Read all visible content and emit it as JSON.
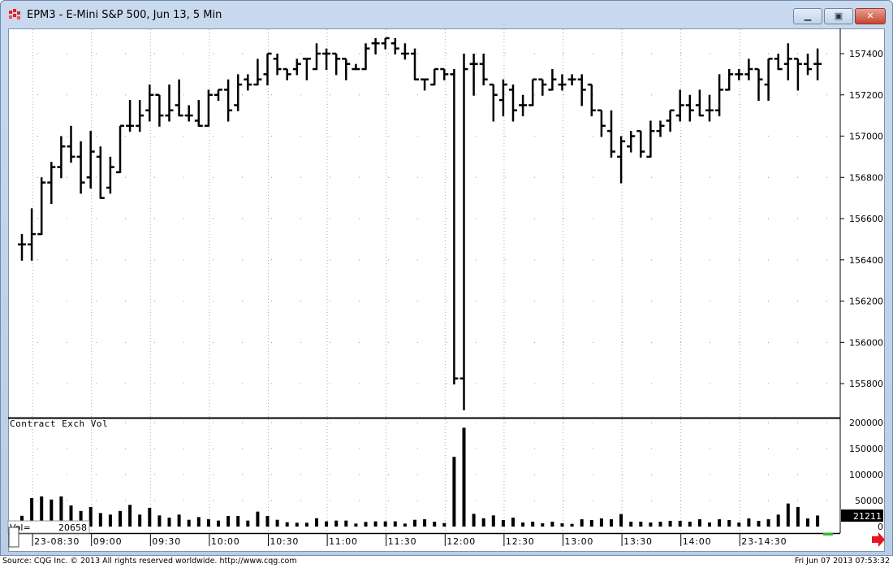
{
  "window": {
    "title": "EPM3 - E-Mini S&P 500, Jun 13, 5 Min",
    "icon": "cqg-logo-icon",
    "controls": [
      "minimize-icon",
      "maximize-icon",
      "close-icon"
    ]
  },
  "footer": {
    "source": "Source: CQG Inc. © 2013 All rights reserved worldwide. http://www.cqg.com",
    "timestamp": "Fri Jun 07 2013 07:53:32"
  },
  "colors": {
    "bars": "#000000",
    "grid": "#9a9a9a",
    "last_value_bg": "#000000",
    "arrow": "#e8141c",
    "scroll_indicator": "#22c422"
  },
  "chart_data": [
    {
      "type": "ohlc",
      "title": "EPM3 - E-Mini S&P 500, Jun 13, 5 Min",
      "ylim": [
        155650,
        157500
      ],
      "yticks": [
        155800,
        156000,
        156200,
        156400,
        156600,
        156800,
        157000,
        157200,
        157400
      ],
      "ytick_labels": [
        "155800",
        "156000",
        "156200",
        "156400",
        "156600",
        "156800",
        "157000",
        "157200",
        "157400"
      ],
      "grid": true,
      "x": [
        "08:25",
        "08:30",
        "08:35",
        "08:40",
        "08:45",
        "08:50",
        "08:55",
        "09:00",
        "09:05",
        "09:10",
        "09:15",
        "09:20",
        "09:25",
        "09:30",
        "09:35",
        "09:40",
        "09:45",
        "09:50",
        "09:55",
        "10:00",
        "10:05",
        "10:10",
        "10:15",
        "10:20",
        "10:25",
        "10:30",
        "10:35",
        "10:40",
        "10:45",
        "10:50",
        "10:55",
        "11:00",
        "11:05",
        "11:10",
        "11:15",
        "11:20",
        "11:25",
        "11:30",
        "11:35",
        "11:40",
        "11:45",
        "11:50",
        "11:55",
        "12:00",
        "12:05",
        "12:10",
        "12:15",
        "12:20",
        "12:25",
        "12:30",
        "12:35",
        "12:40",
        "12:45",
        "12:50",
        "12:55",
        "13:00",
        "13:05",
        "13:10",
        "13:15",
        "13:20",
        "13:25",
        "13:30",
        "13:35",
        "13:40",
        "13:45",
        "13:50",
        "13:55",
        "14:00",
        "14:05",
        "14:10",
        "14:15",
        "14:20",
        "14:25",
        "14:30",
        "14:35",
        "14:40",
        "14:45",
        "14:50",
        "14:55",
        "15:00",
        "15:05",
        "15:10"
      ],
      "ohlc": [
        [
          156475,
          156525,
          156400,
          156475
        ],
        [
          156475,
          156650,
          156400,
          156525
        ],
        [
          156525,
          156800,
          156525,
          156775
        ],
        [
          156775,
          156875,
          156675,
          156850
        ],
        [
          156850,
          157000,
          156800,
          156950
        ],
        [
          156950,
          157050,
          156875,
          156900
        ],
        [
          156900,
          156975,
          156725,
          156775
        ],
        [
          156800,
          157025,
          156750,
          156925
        ],
        [
          156900,
          156950,
          156700,
          156700
        ],
        [
          156750,
          156900,
          156725,
          156850
        ],
        [
          156825,
          157050,
          156825,
          157050
        ],
        [
          157050,
          157175,
          157025,
          157050
        ],
        [
          157050,
          157175,
          157025,
          157100
        ],
        [
          157125,
          157250,
          157075,
          157200
        ],
        [
          157200,
          157200,
          157050,
          157100
        ],
        [
          157100,
          157250,
          157075,
          157125
        ],
        [
          157150,
          157275,
          157100,
          157100
        ],
        [
          157100,
          157150,
          157075,
          157100
        ],
        [
          157075,
          157175,
          157050,
          157050
        ],
        [
          157050,
          157225,
          157050,
          157200
        ],
        [
          157200,
          157225,
          157175,
          157225
        ],
        [
          157225,
          157275,
          157075,
          157125
        ],
        [
          157150,
          157300,
          157125,
          157250
        ],
        [
          157275,
          157300,
          157225,
          157250
        ],
        [
          157250,
          157375,
          157250,
          157275
        ],
        [
          157300,
          157400,
          157250,
          157400
        ],
        [
          157375,
          157400,
          157300,
          157325
        ],
        [
          157325,
          157325,
          157275,
          157300
        ],
        [
          157325,
          157375,
          157300,
          157350
        ],
        [
          157375,
          157375,
          157275,
          157375
        ],
        [
          157325,
          157450,
          157325,
          157400
        ],
        [
          157400,
          157425,
          157325,
          157400
        ],
        [
          157400,
          157400,
          157300,
          157375
        ],
        [
          157375,
          157375,
          157275,
          157350
        ],
        [
          157325,
          157350,
          157325,
          157325
        ],
        [
          157325,
          157450,
          157325,
          157425
        ],
        [
          157450,
          157475,
          157400,
          157450
        ],
        [
          157450,
          157475,
          157425,
          157475
        ],
        [
          157450,
          157475,
          157400,
          157425
        ],
        [
          157400,
          157450,
          157375,
          157400
        ],
        [
          157400,
          157425,
          157275,
          157275
        ],
        [
          157275,
          157275,
          157225,
          157275
        ],
        [
          157250,
          157325,
          157250,
          157325
        ],
        [
          157325,
          157325,
          157275,
          157300
        ],
        [
          157300,
          157325,
          155800,
          155825
        ],
        [
          155825,
          157400,
          155675,
          157325
        ],
        [
          157350,
          157400,
          157200,
          157350
        ],
        [
          157350,
          157400,
          157250,
          157275
        ],
        [
          157250,
          157250,
          157075,
          157200
        ],
        [
          157175,
          157275,
          157100,
          157250
        ],
        [
          157225,
          157250,
          157075,
          157125
        ],
        [
          157150,
          157200,
          157100,
          157150
        ],
        [
          157150,
          157275,
          157150,
          157275
        ],
        [
          157275,
          157275,
          157200,
          157250
        ],
        [
          157225,
          157325,
          157225,
          157275
        ],
        [
          157250,
          157300,
          157225,
          157250
        ],
        [
          157275,
          157300,
          157250,
          157275
        ],
        [
          157275,
          157300,
          157150,
          157225
        ],
        [
          157250,
          157250,
          157100,
          157125
        ],
        [
          157125,
          157125,
          157000,
          157050
        ],
        [
          157025,
          157125,
          156900,
          156925
        ],
        [
          156900,
          157000,
          156775,
          156975
        ],
        [
          156950,
          157025,
          156925,
          157000
        ],
        [
          157025,
          157025,
          156900,
          156925
        ],
        [
          156900,
          157075,
          156900,
          157025
        ],
        [
          157025,
          157075,
          157000,
          157050
        ],
        [
          157075,
          157125,
          157025,
          157125
        ],
        [
          157100,
          157225,
          157075,
          157150
        ],
        [
          157150,
          157200,
          157075,
          157125
        ],
        [
          157150,
          157225,
          157100,
          157100
        ],
        [
          157125,
          157200,
          157075,
          157125
        ],
        [
          157125,
          157300,
          157100,
          157225
        ],
        [
          157225,
          157325,
          157225,
          157300
        ],
        [
          157300,
          157325,
          157275,
          157300
        ],
        [
          157300,
          157375,
          157275,
          157325
        ],
        [
          157325,
          157325,
          157175,
          157275
        ],
        [
          157250,
          157375,
          157175,
          157375
        ],
        [
          157375,
          157400,
          157325,
          157325
        ],
        [
          157350,
          157450,
          157275,
          157375
        ],
        [
          157375,
          157375,
          157225,
          157350
        ],
        [
          157350,
          157400,
          157300,
          157325
        ],
        [
          157350,
          157425,
          157275,
          157350
        ]
      ]
    },
    {
      "type": "bar",
      "title": "Contract Exch Vol",
      "ylim": [
        0,
        200000
      ],
      "yticks": [
        0,
        50000,
        100000,
        150000,
        200000
      ],
      "ytick_labels": [
        "0",
        "50000",
        "100000",
        "150000",
        "200000"
      ],
      "readout_label": "Vol=",
      "readout_value": "20658",
      "last_value": "21211",
      "values": [
        20658,
        54700,
        58000,
        52000,
        58000,
        40600,
        30000,
        37500,
        26000,
        23000,
        30000,
        41700,
        23000,
        36000,
        21400,
        17200,
        23000,
        13000,
        18200,
        14000,
        11500,
        20300,
        20300,
        11500,
        28700,
        20300,
        13000,
        8300,
        7300,
        7300,
        16000,
        10000,
        11500,
        11500,
        5700,
        8900,
        10000,
        10000,
        10000,
        5700,
        13000,
        14000,
        9400,
        6800,
        134000,
        190000,
        24500,
        16000,
        21400,
        12500,
        17200,
        7800,
        9400,
        6200,
        9400,
        6200,
        5200,
        14000,
        12500,
        15600,
        14000,
        24000,
        9400,
        9400,
        7800,
        9400,
        11000,
        11000,
        9400,
        14000,
        7800,
        14000,
        12500,
        7800,
        15600,
        11000,
        14000,
        23000,
        44300,
        37500,
        15600,
        21211
      ]
    }
  ],
  "time_axis": {
    "labels": [
      "23-08:30",
      "09:00",
      "09:30",
      "10:00",
      "10:30",
      "11:00",
      "11:30",
      "12:00",
      "12:30",
      "13:00",
      "13:30",
      "14:00",
      "23-14:30"
    ],
    "label_bar_index": [
      1,
      7,
      13,
      19,
      25,
      31,
      37,
      43,
      49,
      55,
      61,
      67,
      73
    ]
  }
}
